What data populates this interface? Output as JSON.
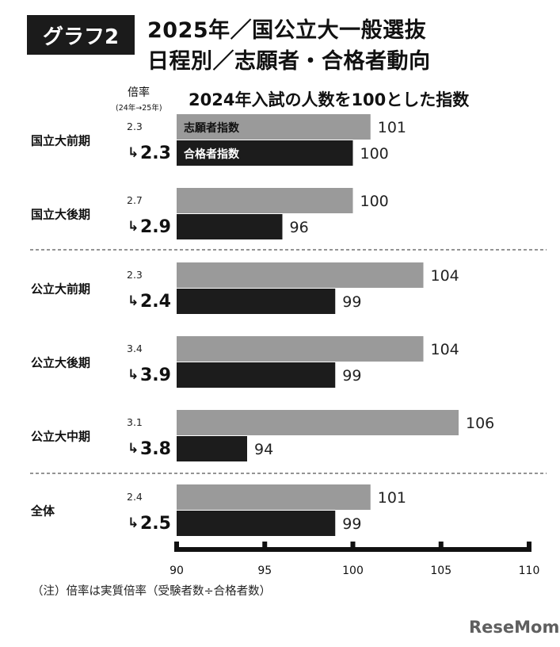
{
  "badge": "グラフ2",
  "title_line1": "2025年／国公立大一般選抜",
  "title_line2": "日程別／志願者・合格者動向",
  "subtitle": "2024年入試の人数を100とした指数",
  "ratio_header": "倍率",
  "ratio_period": "(24年→25年)",
  "footnote": "（注）倍率は実質倍率（受験者数÷合格者数）",
  "brand": "ReseMom",
  "colors": {
    "applicants": "#9a9a9a",
    "passers": "#1c1c1c",
    "axis": "#111111",
    "divider": "#555555"
  },
  "chart_data": {
    "type": "bar",
    "orientation": "horizontal",
    "categories": [
      "国立大前期",
      "国立大後期",
      "公立大前期",
      "公立大後期",
      "公立大中期",
      "全体"
    ],
    "series": [
      {
        "name": "志願者指数",
        "values": [
          101,
          100,
          104,
          104,
          106,
          101
        ]
      },
      {
        "name": "合格者指数",
        "values": [
          100,
          96,
          99,
          99,
          94,
          99
        ]
      }
    ],
    "ratio_prev": [
      "2.3",
      "2.7",
      "2.3",
      "3.4",
      "3.1",
      "2.4"
    ],
    "ratio_curr": [
      "2.3",
      "2.9",
      "2.4",
      "3.9",
      "3.8",
      "2.5"
    ],
    "xlim": [
      90,
      110
    ],
    "xticks": [
      90,
      95,
      100,
      105,
      110
    ],
    "legend_placement": "inside first bars",
    "grid": false
  }
}
